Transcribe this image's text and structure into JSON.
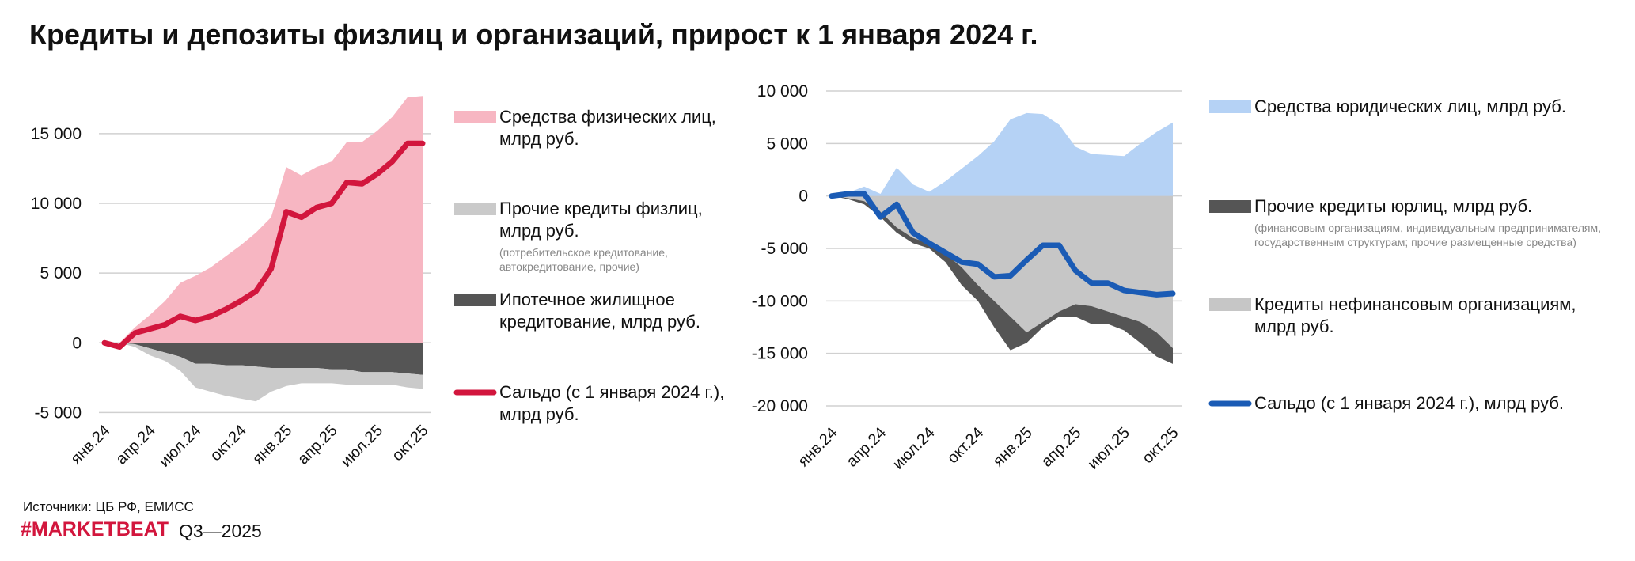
{
  "chart_data": [
    {
      "type": "area",
      "title": "Кредиты и депозиты физлиц и организаций, прирост к 1 января 2024 г.",
      "categories": [
        "янв.24",
        null,
        null,
        "апр.24",
        null,
        null,
        "июл.24",
        null,
        null,
        "окт.24",
        null,
        null,
        "янв.25",
        null,
        null,
        "апр.25",
        null,
        null,
        "июл.25",
        null,
        null,
        "окт.25"
      ],
      "ylim": [
        -6000,
        18000
      ],
      "yticks": [
        {
          "value": -5000,
          "label": "-5 000"
        },
        0,
        {
          "value": 5000,
          "label": "5 000"
        },
        {
          "value": 10000,
          "label": "10 000"
        },
        {
          "value": 15000,
          "label": "15 000"
        }
      ],
      "grid": true,
      "series": [
        {
          "name": "Средства физических лиц, млрд руб.",
          "type": "area",
          "color": "#f7b6c2",
          "values": [
            0,
            0,
            1100,
            2000,
            3000,
            4300,
            4800,
            5400,
            6200,
            7000,
            7900,
            9000,
            12600,
            12000,
            12600,
            13000,
            14400,
            14400,
            15200,
            16200,
            17600,
            17700
          ]
        },
        {
          "name": "Прочие кредиты физлиц, млрд руб.",
          "note": "(потребительское кредитование, автокредитование, прочие)",
          "type": "area",
          "color": "#cacaca",
          "values": [
            0,
            0,
            -200,
            -500,
            -600,
            -1000,
            -1700,
            -2000,
            -2200,
            -2400,
            -2500,
            -1700,
            -1300,
            -1100,
            -1100,
            -1000,
            -1100,
            -900,
            -900,
            -900,
            -1000,
            -1000
          ]
        },
        {
          "name": "Ипотечное жилищное кредитование, млрд руб.",
          "type": "area",
          "color": "#555555",
          "values": [
            0,
            0,
            -100,
            -400,
            -700,
            -1000,
            -1500,
            -1500,
            -1600,
            -1600,
            -1700,
            -1800,
            -1800,
            -1800,
            -1800,
            -1900,
            -1900,
            -2100,
            -2100,
            -2100,
            -2200,
            -2300
          ]
        },
        {
          "name": "Сальдо (с 1 января 2024 г.), млрд руб.",
          "type": "line",
          "color": "#d2163d",
          "values": [
            0,
            -300,
            700,
            1000,
            1300,
            1900,
            1600,
            1900,
            2400,
            3000,
            3700,
            5300,
            9400,
            9000,
            9700,
            10000,
            11500,
            11400,
            12100,
            13000,
            14300,
            14300
          ]
        }
      ],
      "source": "Источники: ЦБ РФ, ЕМИСС",
      "brand": "#MARKETBEAT",
      "period": "Q3—2025"
    },
    {
      "type": "area",
      "categories": [
        "янв.24",
        null,
        null,
        "апр.24",
        null,
        null,
        "июл.24",
        null,
        null,
        "окт.24",
        null,
        null,
        "янв.25",
        null,
        null,
        "апр.25",
        null,
        null,
        "июл.25",
        null,
        null,
        "окт.25"
      ],
      "ylim": [
        -20000,
        10000
      ],
      "yticks": [
        {
          "value": -20000,
          "label": "-20 000"
        },
        {
          "value": -15000,
          "label": "-15 000"
        },
        {
          "value": -10000,
          "label": "-10 000"
        },
        {
          "value": -5000,
          "label": "-5 000"
        },
        0,
        {
          "value": 5000,
          "label": "5 000"
        },
        {
          "value": 10000,
          "label": "10 000"
        }
      ],
      "grid": true,
      "series": [
        {
          "name": "Средства юридических лиц, млрд руб.",
          "type": "area",
          "color": "#b5d2f5",
          "values": [
            0,
            300,
            900,
            200,
            2700,
            1100,
            400,
            1400,
            2600,
            3800,
            5200,
            7300,
            7900,
            7800,
            6800,
            4700,
            4000,
            3900,
            3800,
            5000,
            6100,
            7000
          ]
        },
        {
          "name": "Прочие кредиты юрлиц, млрд руб.",
          "note": "(финансовым организациям, индивидуальным предпринимателям, государственным структурам; прочие размещенные средства)",
          "type": "area",
          "color": "#555555",
          "values": [
            0,
            -100,
            -300,
            -500,
            -500,
            -500,
            -500,
            -800,
            -1700,
            -1500,
            -2500,
            -3200,
            -1000,
            -500,
            -500,
            -1200,
            -1700,
            -1200,
            -1300,
            -2000,
            -2300,
            -1500
          ]
        },
        {
          "name": "Кредиты нефинансовым организациям, млрд руб.",
          "type": "area",
          "color": "#c6c6c6",
          "values": [
            0,
            -200,
            -500,
            -1500,
            -3000,
            -4000,
            -4500,
            -5500,
            -6800,
            -8500,
            -10000,
            -11500,
            -13000,
            -12000,
            -11000,
            -10300,
            -10500,
            -11000,
            -11500,
            -12000,
            -13000,
            -14500
          ]
        },
        {
          "name": "Сальдо (с 1 января 2024 г.), млрд руб.",
          "type": "line",
          "color": "#1a5bb5",
          "values": [
            0,
            200,
            200,
            -2000,
            -800,
            -3500,
            -4500,
            -5400,
            -6300,
            -6500,
            -7700,
            -7600,
            -6100,
            -4700,
            -4700,
            -7100,
            -8300,
            -8300,
            -9000,
            -9200,
            -9400,
            -9300
          ]
        }
      ]
    }
  ]
}
